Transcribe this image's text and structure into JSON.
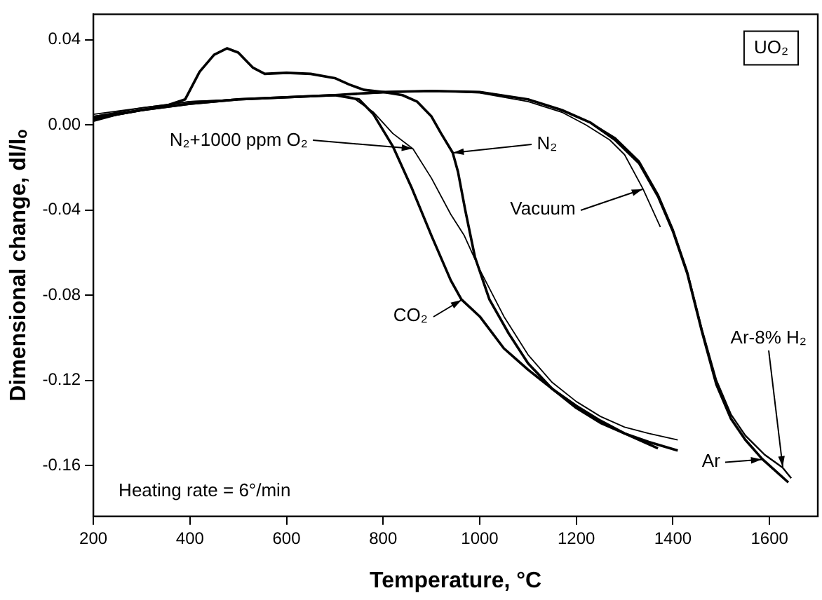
{
  "chart_data": {
    "type": "line",
    "xlabel": "Temperature, °C",
    "ylabel": "Dimensional change, dl/lₒ",
    "xlim": [
      200,
      1700
    ],
    "xticks": [
      200,
      400,
      600,
      800,
      1000,
      1200,
      1400,
      1600
    ],
    "ylim": [
      -0.184,
      0.052
    ],
    "yticks": [
      -0.16,
      -0.12,
      -0.08,
      -0.04,
      {
        "value": 0,
        "label": "0.00"
      },
      0.04
    ],
    "grid": false,
    "legend": false,
    "marker": "none",
    "line_style": "solid",
    "series": [
      {
        "color": "#000000",
        "x": [
          200,
          250,
          300,
          350,
          390,
          420,
          450,
          477,
          500,
          530,
          555,
          600,
          650,
          700,
          730,
          760,
          800,
          840,
          870,
          900,
          920,
          944,
          955,
          970,
          990,
          1020,
          1060,
          1100,
          1150,
          1200,
          1250,
          1300,
          1350,
          1410
        ],
        "values": [
          0.002,
          0.005,
          0.007,
          0.009,
          0.012,
          0.025,
          0.033,
          0.036,
          0.034,
          0.027,
          0.024,
          0.0245,
          0.024,
          0.022,
          0.019,
          0.0165,
          0.0155,
          0.014,
          0.011,
          0.004,
          -0.004,
          -0.013,
          -0.022,
          -0.04,
          -0.062,
          -0.082,
          -0.098,
          -0.112,
          -0.124,
          -0.133,
          -0.14,
          -0.145,
          -0.149,
          -0.153
        ]
      },
      {
        "color": "#000000",
        "x": [
          200,
          300,
          400,
          500,
          600,
          700,
          736,
          780,
          820,
          862,
          900,
          940,
          968,
          1000,
          1050,
          1100,
          1150,
          1200,
          1250,
          1300,
          1350,
          1410
        ],
        "values": [
          0.004,
          0.008,
          0.011,
          0.012,
          0.013,
          0.014,
          0.013,
          0.006,
          -0.004,
          -0.0113,
          -0.025,
          -0.042,
          -0.052,
          -0.068,
          -0.09,
          -0.108,
          -0.121,
          -0.13,
          -0.137,
          -0.142,
          -0.145,
          -0.148
        ]
      },
      {
        "color": "#000000",
        "x": [
          200,
          300,
          400,
          500,
          600,
          700,
          750,
          780,
          820,
          860,
          900,
          940,
          962,
          1000,
          1050,
          1100,
          1150,
          1200,
          1250,
          1300,
          1369
        ],
        "values": [
          0.003,
          0.007,
          0.01,
          0.012,
          0.013,
          0.014,
          0.012,
          0.005,
          -0.01,
          -0.03,
          -0.052,
          -0.073,
          -0.082,
          -0.09,
          -0.105,
          -0.115,
          -0.124,
          -0.132,
          -0.139,
          -0.145,
          -0.152
        ]
      },
      {
        "color": "#000000",
        "x": [
          200,
          300,
          400,
          500,
          600,
          700,
          800,
          900,
          1000,
          1100,
          1170,
          1220,
          1269,
          1300,
          1338,
          1374
        ],
        "values": [
          0.005,
          0.008,
          0.011,
          0.012,
          0.013,
          0.014,
          0.015,
          0.016,
          0.015,
          0.011,
          0.006,
          0,
          -0.007,
          -0.014,
          -0.03,
          -0.048
        ]
      },
      {
        "color": "#000000",
        "x": [
          200,
          300,
          400,
          500,
          600,
          700,
          800,
          900,
          1000,
          1100,
          1170,
          1230,
          1280,
          1330,
          1370,
          1400,
          1430,
          1460,
          1490,
          1520,
          1550,
          1585,
          1639
        ],
        "values": [
          0.003,
          0.007,
          0.01,
          0.012,
          0.013,
          0.014,
          0.0155,
          0.016,
          0.0155,
          0.012,
          0.007,
          0.001,
          -0.007,
          -0.018,
          -0.034,
          -0.05,
          -0.07,
          -0.097,
          -0.122,
          -0.138,
          -0.148,
          -0.157,
          -0.168
        ]
      },
      {
        "color": "#000000",
        "x": [
          200,
          300,
          400,
          500,
          600,
          700,
          800,
          900,
          1000,
          1100,
          1170,
          1230,
          1280,
          1330,
          1370,
          1400,
          1430,
          1460,
          1490,
          1520,
          1550,
          1590,
          1627,
          1645
        ],
        "values": [
          0.004,
          0.007,
          0.01,
          0.012,
          0.013,
          0.014,
          0.0155,
          0.016,
          0.0155,
          0.012,
          0.007,
          0.001,
          -0.006,
          -0.017,
          -0.033,
          -0.049,
          -0.069,
          -0.096,
          -0.12,
          -0.136,
          -0.146,
          -0.155,
          -0.161,
          -0.166
        ]
      }
    ],
    "annotations": [
      {
        "text": "N₂",
        "x": 944,
        "y": -0.013
      },
      {
        "text": "N₂+1000 ppm O₂",
        "x": 862,
        "y": -0.0113
      },
      {
        "text": "CO₂",
        "x": 962,
        "y": -0.082
      },
      {
        "text": "Vacuum",
        "x": 1338,
        "y": -0.03
      },
      {
        "text": "Ar",
        "x": 1585,
        "y": -0.157
      },
      {
        "text": "Ar-8% H₂",
        "x": 1627,
        "y": -0.161
      },
      "UO₂",
      "Heating rate = 6°/min"
    ]
  }
}
